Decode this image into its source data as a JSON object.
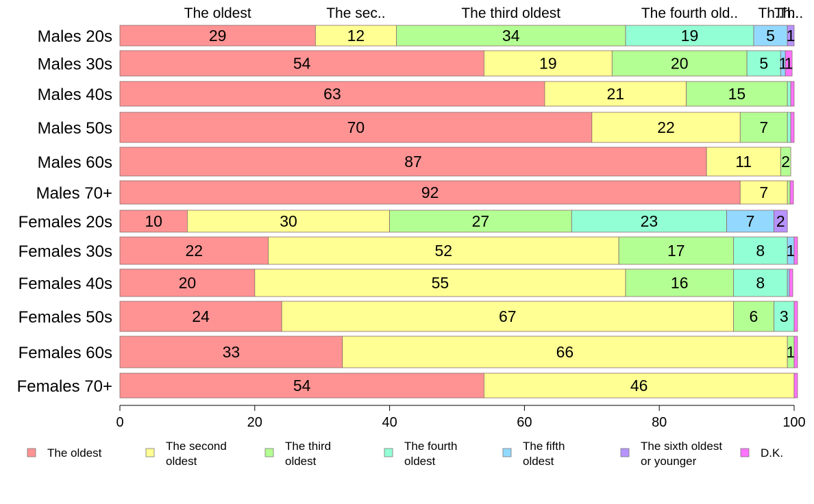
{
  "chart_data": {
    "type": "bar",
    "orientation": "horizontal",
    "stacked": true,
    "categories": [
      "Males 20s",
      "Males 30s",
      "Males 40s",
      "Males 50s",
      "Males 60s",
      "Males 70+",
      "Females 20s",
      "Females 30s",
      "Females 40s",
      "Females 50s",
      "Females 60s",
      "Females 70+"
    ],
    "series": [
      {
        "name": "The oldest",
        "color": "#FF9393",
        "values": [
          29,
          54,
          63,
          70,
          87,
          92,
          10,
          22,
          20,
          24,
          33,
          54
        ]
      },
      {
        "name": "The second oldest",
        "color": "#FFFF93",
        "values": [
          12,
          19,
          21,
          22,
          11,
          7,
          30,
          52,
          55,
          67,
          66,
          46
        ]
      },
      {
        "name": "The third oldest",
        "color": "#B4FF93",
        "values": [
          34,
          20,
          15,
          7,
          1.5,
          0.4,
          27,
          17,
          16,
          6,
          1,
          0
        ]
      },
      {
        "name": "The fourth oldest",
        "color": "#93FFD4",
        "values": [
          19,
          5,
          0.5,
          0.5,
          0,
          0,
          23,
          8,
          8,
          3,
          0,
          0
        ]
      },
      {
        "name": "The fifth oldest",
        "color": "#93D9FF",
        "values": [
          5,
          0.7,
          0,
          0,
          0,
          0,
          7,
          1,
          0.3,
          0,
          0,
          0
        ]
      },
      {
        "name": "The sixth oldest or younger",
        "color": "#B693FF",
        "values": [
          1,
          0,
          0,
          0,
          0,
          0,
          2,
          0,
          0,
          0,
          0,
          0
        ]
      },
      {
        "name": "D.K.",
        "color": "#FF73FF",
        "values": [
          0,
          1,
          0.5,
          0.5,
          0,
          0.5,
          0,
          0.5,
          0.5,
          0.5,
          0.5,
          0.5
        ]
      }
    ],
    "bar_labels": [
      [
        "29",
        "12",
        "34",
        "19",
        "5",
        "1",
        ""
      ],
      [
        "54",
        "19",
        "20",
        "5",
        "1",
        "",
        "1"
      ],
      [
        "63",
        "21",
        "15",
        "",
        "",
        "",
        ""
      ],
      [
        "70",
        "22",
        "7",
        "",
        "",
        "",
        ""
      ],
      [
        "87",
        "11",
        "2",
        "",
        "",
        "",
        ""
      ],
      [
        "92",
        "7",
        "",
        "",
        "",
        "",
        ""
      ],
      [
        "10",
        "30",
        "27",
        "23",
        "7",
        "2",
        ""
      ],
      [
        "22",
        "52",
        "17",
        "8",
        "1",
        "",
        ""
      ],
      [
        "20",
        "55",
        "16",
        "8",
        "",
        "",
        ""
      ],
      [
        "24",
        "67",
        "6",
        "3",
        "",
        "",
        ""
      ],
      [
        "33",
        "66",
        "1",
        "",
        "",
        "",
        ""
      ],
      [
        "54",
        "46",
        "",
        "",
        "",
        "",
        ""
      ]
    ],
    "top_labels": [
      "The oldest",
      "The sec..",
      "The third oldest",
      "The fourth old..",
      "Th..",
      "Th..",
      "Th.."
    ],
    "legend": [
      {
        "lines": [
          "The oldest"
        ],
        "color": "#FF9393"
      },
      {
        "lines": [
          "The second",
          "oldest"
        ],
        "color": "#FFFF93"
      },
      {
        "lines": [
          "The third",
          "oldest"
        ],
        "color": "#B4FF93"
      },
      {
        "lines": [
          "The fourth",
          "oldest"
        ],
        "color": "#93FFD4"
      },
      {
        "lines": [
          "The fifth",
          "oldest"
        ],
        "color": "#93D9FF"
      },
      {
        "lines": [
          "The sixth oldest",
          "or younger"
        ],
        "color": "#B693FF"
      },
      {
        "lines": [
          "D.K."
        ],
        "color": "#FF73FF"
      }
    ],
    "legend_position": "bottom",
    "xlim": [
      0,
      100
    ],
    "xticks": [
      0,
      20,
      40,
      60,
      80,
      100
    ],
    "grid": false
  }
}
